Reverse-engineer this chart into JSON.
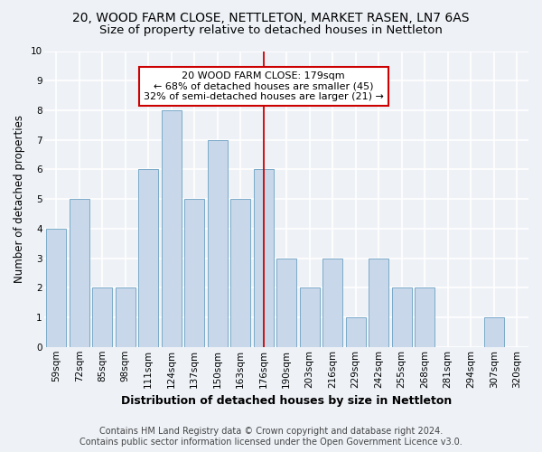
{
  "title": "20, WOOD FARM CLOSE, NETTLETON, MARKET RASEN, LN7 6AS",
  "subtitle": "Size of property relative to detached houses in Nettleton",
  "xlabel": "Distribution of detached houses by size in Nettleton",
  "ylabel": "Number of detached properties",
  "categories": [
    "59sqm",
    "72sqm",
    "85sqm",
    "98sqm",
    "111sqm",
    "124sqm",
    "137sqm",
    "150sqm",
    "163sqm",
    "176sqm",
    "190sqm",
    "203sqm",
    "216sqm",
    "229sqm",
    "242sqm",
    "255sqm",
    "268sqm",
    "281sqm",
    "294sqm",
    "307sqm",
    "320sqm"
  ],
  "values": [
    4,
    5,
    2,
    2,
    6,
    8,
    5,
    7,
    5,
    6,
    3,
    2,
    3,
    1,
    3,
    2,
    2,
    0,
    0,
    1,
    0
  ],
  "bar_color": "#c8d8ea",
  "bar_edgecolor": "#7aaac8",
  "vline_x_index": 9,
  "vline_color": "#cc0000",
  "ylim": [
    0,
    10
  ],
  "yticks": [
    0,
    1,
    2,
    3,
    4,
    5,
    6,
    7,
    8,
    9,
    10
  ],
  "annotation_text": "20 WOOD FARM CLOSE: 179sqm\n← 68% of detached houses are smaller (45)\n32% of semi-detached houses are larger (21) →",
  "annotation_box_facecolor": "#ffffff",
  "annotation_box_edgecolor": "#cc0000",
  "footer_line1": "Contains HM Land Registry data © Crown copyright and database right 2024.",
  "footer_line2": "Contains public sector information licensed under the Open Government Licence v3.0.",
  "background_color": "#eef2f7",
  "plot_bg_color": "#eef2f7",
  "grid_color": "#ffffff",
  "title_fontsize": 10,
  "subtitle_fontsize": 9.5,
  "xlabel_fontsize": 9,
  "ylabel_fontsize": 8.5,
  "tick_fontsize": 7.5,
  "annotation_fontsize": 8,
  "footer_fontsize": 7
}
